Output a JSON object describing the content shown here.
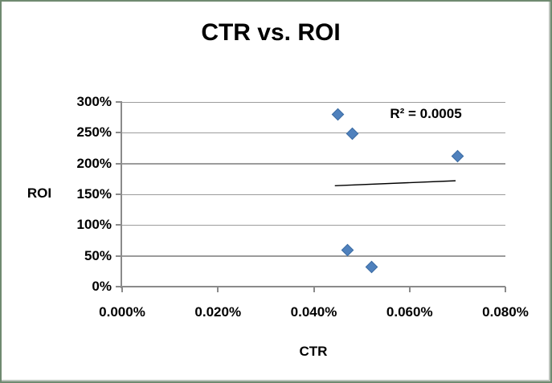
{
  "window": {
    "background": "#ffffff",
    "frame_border": "#6f8a70"
  },
  "colors": {
    "marker": "#4F81BD",
    "marker_border": "#3D6DA3",
    "gridline": "#9C9C9C",
    "axis": "#8A8A8A",
    "trendline": "#000000",
    "text": "#000000"
  },
  "chart_data": {
    "type": "scatter",
    "title": "CTR vs. ROI",
    "xlabel": "CTR",
    "ylabel": "ROI",
    "annotation": "R² = 0.0005",
    "legend": "none",
    "grid": "horizontal-only",
    "xlim": [
      0,
      0.08
    ],
    "ylim": [
      0,
      300
    ],
    "x_ticks": [
      {
        "value": 0.0,
        "label": "0.000%"
      },
      {
        "value": 0.02,
        "label": "0.020%"
      },
      {
        "value": 0.04,
        "label": "0.040%"
      },
      {
        "value": 0.06,
        "label": "0.060%"
      },
      {
        "value": 0.08,
        "label": "0.080%"
      }
    ],
    "y_ticks": [
      {
        "value": 0,
        "label": "0%"
      },
      {
        "value": 50,
        "label": "50%"
      },
      {
        "value": 100,
        "label": "100%"
      },
      {
        "value": 150,
        "label": "150%"
      },
      {
        "value": 200,
        "label": "200%"
      },
      {
        "value": 250,
        "label": "250%"
      },
      {
        "value": 300,
        "label": "300%"
      }
    ],
    "series": [
      {
        "name": "CTR vs ROI",
        "marker": "diamond",
        "color": "#4F81BD",
        "points": [
          {
            "x": 0.045,
            "y": 280
          },
          {
            "x": 0.048,
            "y": 248
          },
          {
            "x": 0.07,
            "y": 212
          },
          {
            "x": 0.047,
            "y": 60
          },
          {
            "x": 0.052,
            "y": 32
          }
        ]
      }
    ],
    "trendline": {
      "type": "linear",
      "color": "#000000",
      "x1": 0.0444,
      "y1": 164,
      "x2": 0.0696,
      "y2": 172,
      "r_squared": 0.0005
    }
  }
}
